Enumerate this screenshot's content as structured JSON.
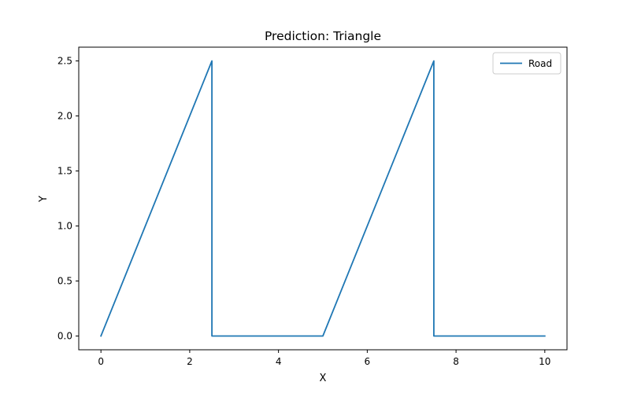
{
  "chart_data": {
    "type": "line",
    "title": "Prediction: Triangle",
    "xlabel": "X",
    "ylabel": "Y",
    "xlim": [
      -0.5,
      10.5
    ],
    "ylim": [
      -0.125,
      2.625
    ],
    "x_ticks": [
      0,
      2,
      4,
      6,
      8,
      10
    ],
    "x_tick_labels": [
      "0",
      "2",
      "4",
      "6",
      "8",
      "10"
    ],
    "y_ticks": [
      0.0,
      0.5,
      1.0,
      1.5,
      2.0,
      2.5
    ],
    "y_tick_labels": [
      "0.0",
      "0.5",
      "1.0",
      "1.5",
      "2.0",
      "2.5"
    ],
    "grid": false,
    "legend_position": "top-right",
    "series": [
      {
        "name": "Road",
        "color": "#1f77b4",
        "x": [
          0,
          2.5,
          2.5,
          5,
          7.5,
          7.5,
          10
        ],
        "y": [
          0,
          2.5,
          0,
          0,
          2.5,
          0,
          0
        ]
      }
    ]
  }
}
